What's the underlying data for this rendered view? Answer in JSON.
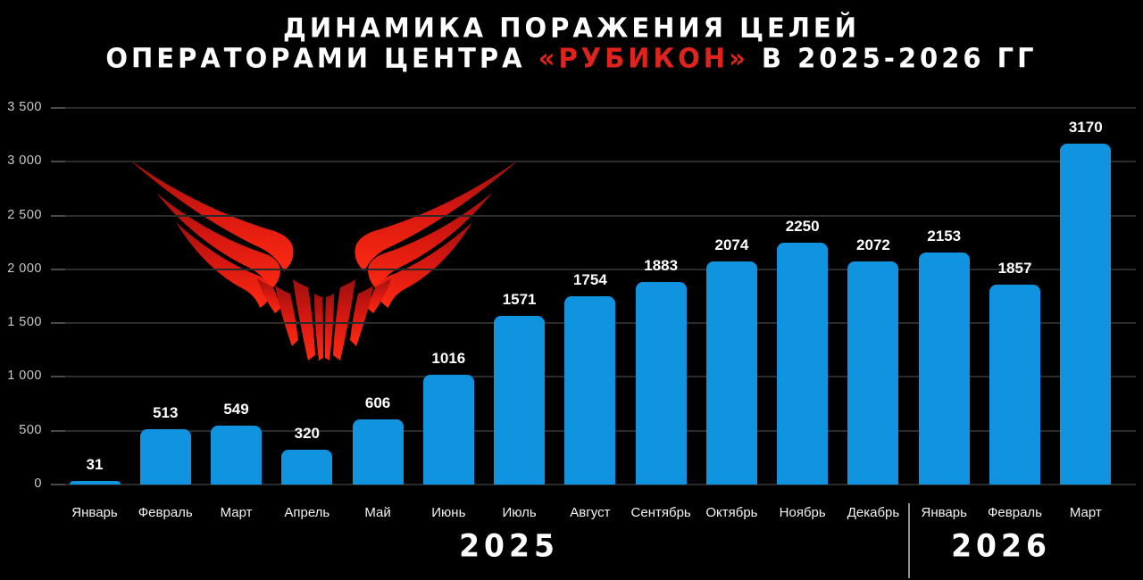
{
  "title": {
    "line1": "ДИНАМИКА ПОРАЖЕНИЯ ЦЕЛЕЙ",
    "line2_prefix": "ОПЕРАТОРАМИ ЦЕНТРА ",
    "line2_highlight": "«РУБИКОН»",
    "line2_suffix": " В 2025-2026 ГГ"
  },
  "logo": {
    "name": "red-wings-emblem"
  },
  "axis": {
    "ytick_labels": [
      "0",
      "500",
      "1 000",
      "1 500",
      "2 000",
      "2 500",
      "3 000",
      "3 500"
    ]
  },
  "chart_data": {
    "type": "bar",
    "title": "ДИНАМИКА ПОРАЖЕНИЯ ЦЕЛЕЙ ОПЕРАТОРАМИ ЦЕНТРА «РУБИКОН» В 2025-2026 ГГ",
    "categories": [
      "Январь",
      "Февраль",
      "Март",
      "Апрель",
      "Май",
      "Июнь",
      "Июль",
      "Август",
      "Сентябрь",
      "Октябрь",
      "Ноябрь",
      "Декабрь",
      "Январь",
      "Февраль",
      "Март"
    ],
    "values": [
      31,
      513,
      549,
      320,
      606,
      1016,
      1571,
      1754,
      1883,
      2074,
      2250,
      2072,
      2153,
      1857,
      3170
    ],
    "year_groups": [
      {
        "label": "2025",
        "from_index": 0,
        "to_index": 11
      },
      {
        "label": "2026",
        "from_index": 12,
        "to_index": 14
      }
    ],
    "xlabel": "",
    "ylabel": "",
    "ylim": [
      0,
      3500
    ],
    "ytick_interval": 500,
    "grid": true,
    "legend": "none",
    "bar_color": "#1194E0"
  },
  "colors": {
    "background": "#000000",
    "bar": "#1194E0",
    "title_text": "#FFFFFF",
    "highlight_red": "#E0231C",
    "gridline": "#2B2B2B",
    "axis_label": "#C9C9C9",
    "value_label": "#FFFFFF",
    "month_label": "#F2F2F2",
    "separator": "#8F8F8F",
    "logo_red_dark": "#9E100E",
    "logo_red_bright": "#FF2A12"
  }
}
